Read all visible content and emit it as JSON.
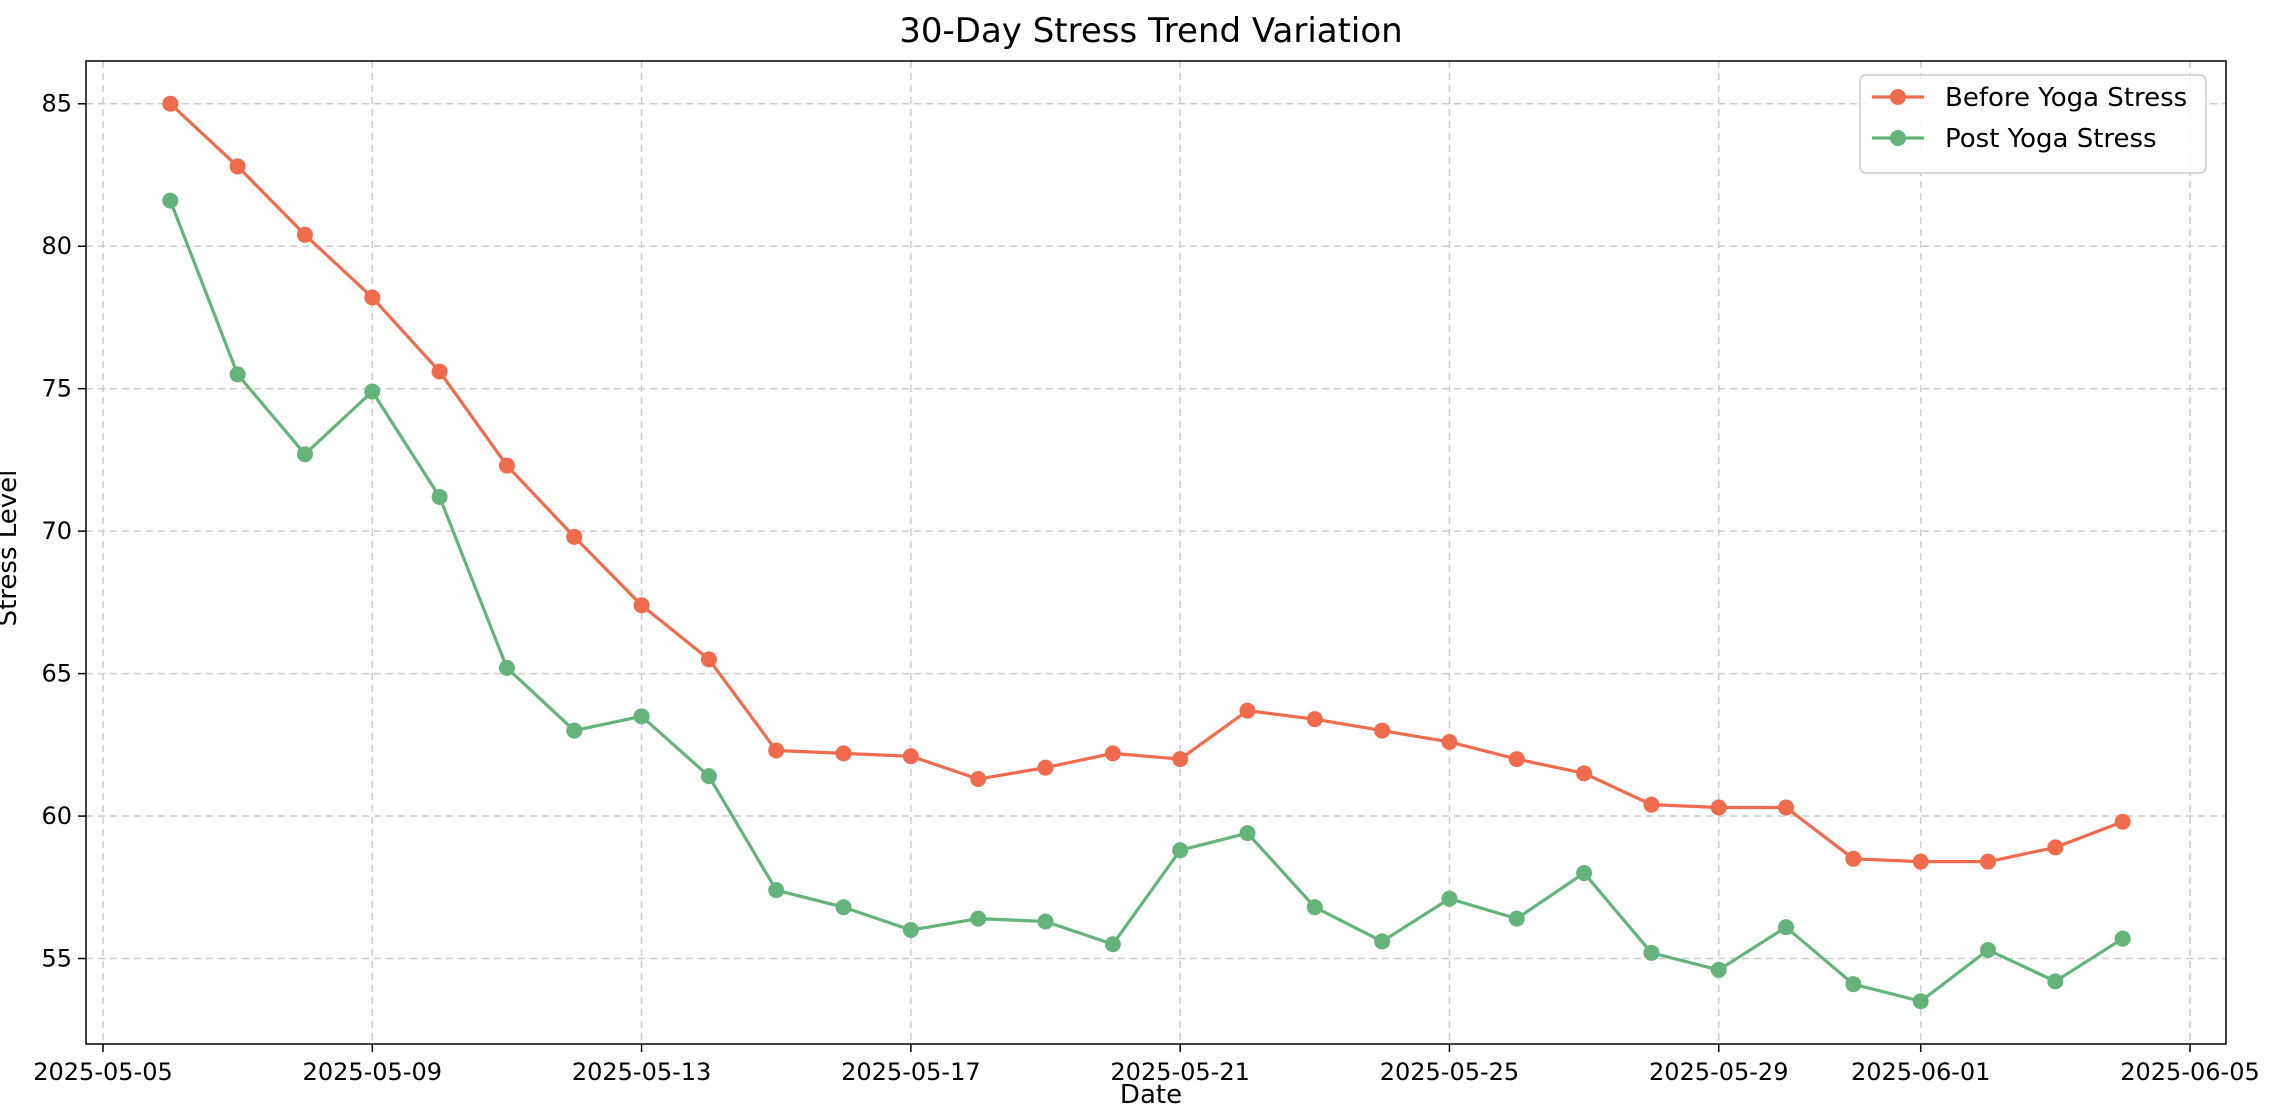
{
  "chart_data": {
    "type": "line",
    "title": "30-Day Stress Trend Variation",
    "xlabel": "Date",
    "ylabel": "Stress Level",
    "grid": true,
    "grid_style": "dashed",
    "legend_position": "top-right",
    "xlim": [
      "2025-05-05",
      "2025-06-05"
    ],
    "ylim": [
      52,
      86.5
    ],
    "x_ticks": [
      "2025-05-05",
      "2025-05-09",
      "2025-05-13",
      "2025-05-17",
      "2025-05-21",
      "2025-05-25",
      "2025-05-29",
      "2025-06-01",
      "2025-06-05"
    ],
    "y_ticks": [
      55,
      60,
      65,
      70,
      75,
      80,
      85
    ],
    "x": [
      "2025-05-06",
      "2025-05-07",
      "2025-05-08",
      "2025-05-09",
      "2025-05-10",
      "2025-05-11",
      "2025-05-12",
      "2025-05-13",
      "2025-05-14",
      "2025-05-15",
      "2025-05-16",
      "2025-05-17",
      "2025-05-18",
      "2025-05-19",
      "2025-05-20",
      "2025-05-21",
      "2025-05-22",
      "2025-05-23",
      "2025-05-24",
      "2025-05-25",
      "2025-05-26",
      "2025-05-27",
      "2025-05-28",
      "2025-05-29",
      "2025-05-30",
      "2025-05-31",
      "2025-06-01",
      "2025-06-02",
      "2025-06-03",
      "2025-06-04"
    ],
    "series": [
      {
        "name": "Before Yoga Stress",
        "color": "#ee6c4d",
        "marker": "circle",
        "values": [
          85.0,
          82.8,
          80.4,
          78.2,
          75.6,
          72.3,
          69.8,
          67.4,
          65.5,
          62.3,
          62.2,
          62.1,
          61.3,
          61.7,
          62.2,
          62.0,
          63.7,
          63.4,
          63.0,
          62.6,
          62.0,
          61.5,
          60.4,
          60.3,
          60.3,
          58.5,
          58.4,
          58.4,
          58.9,
          59.8
        ]
      },
      {
        "name": "Post Yoga Stress",
        "color": "#63b37a",
        "marker": "circle",
        "values": [
          81.6,
          75.5,
          72.7,
          74.9,
          71.2,
          65.2,
          63.0,
          63.5,
          61.4,
          57.4,
          56.8,
          56.0,
          56.4,
          56.3,
          55.5,
          58.8,
          59.4,
          56.8,
          55.6,
          57.1,
          56.4,
          58.0,
          55.2,
          54.6,
          56.1,
          54.1,
          53.5,
          55.3,
          54.2,
          55.7
        ]
      }
    ]
  }
}
